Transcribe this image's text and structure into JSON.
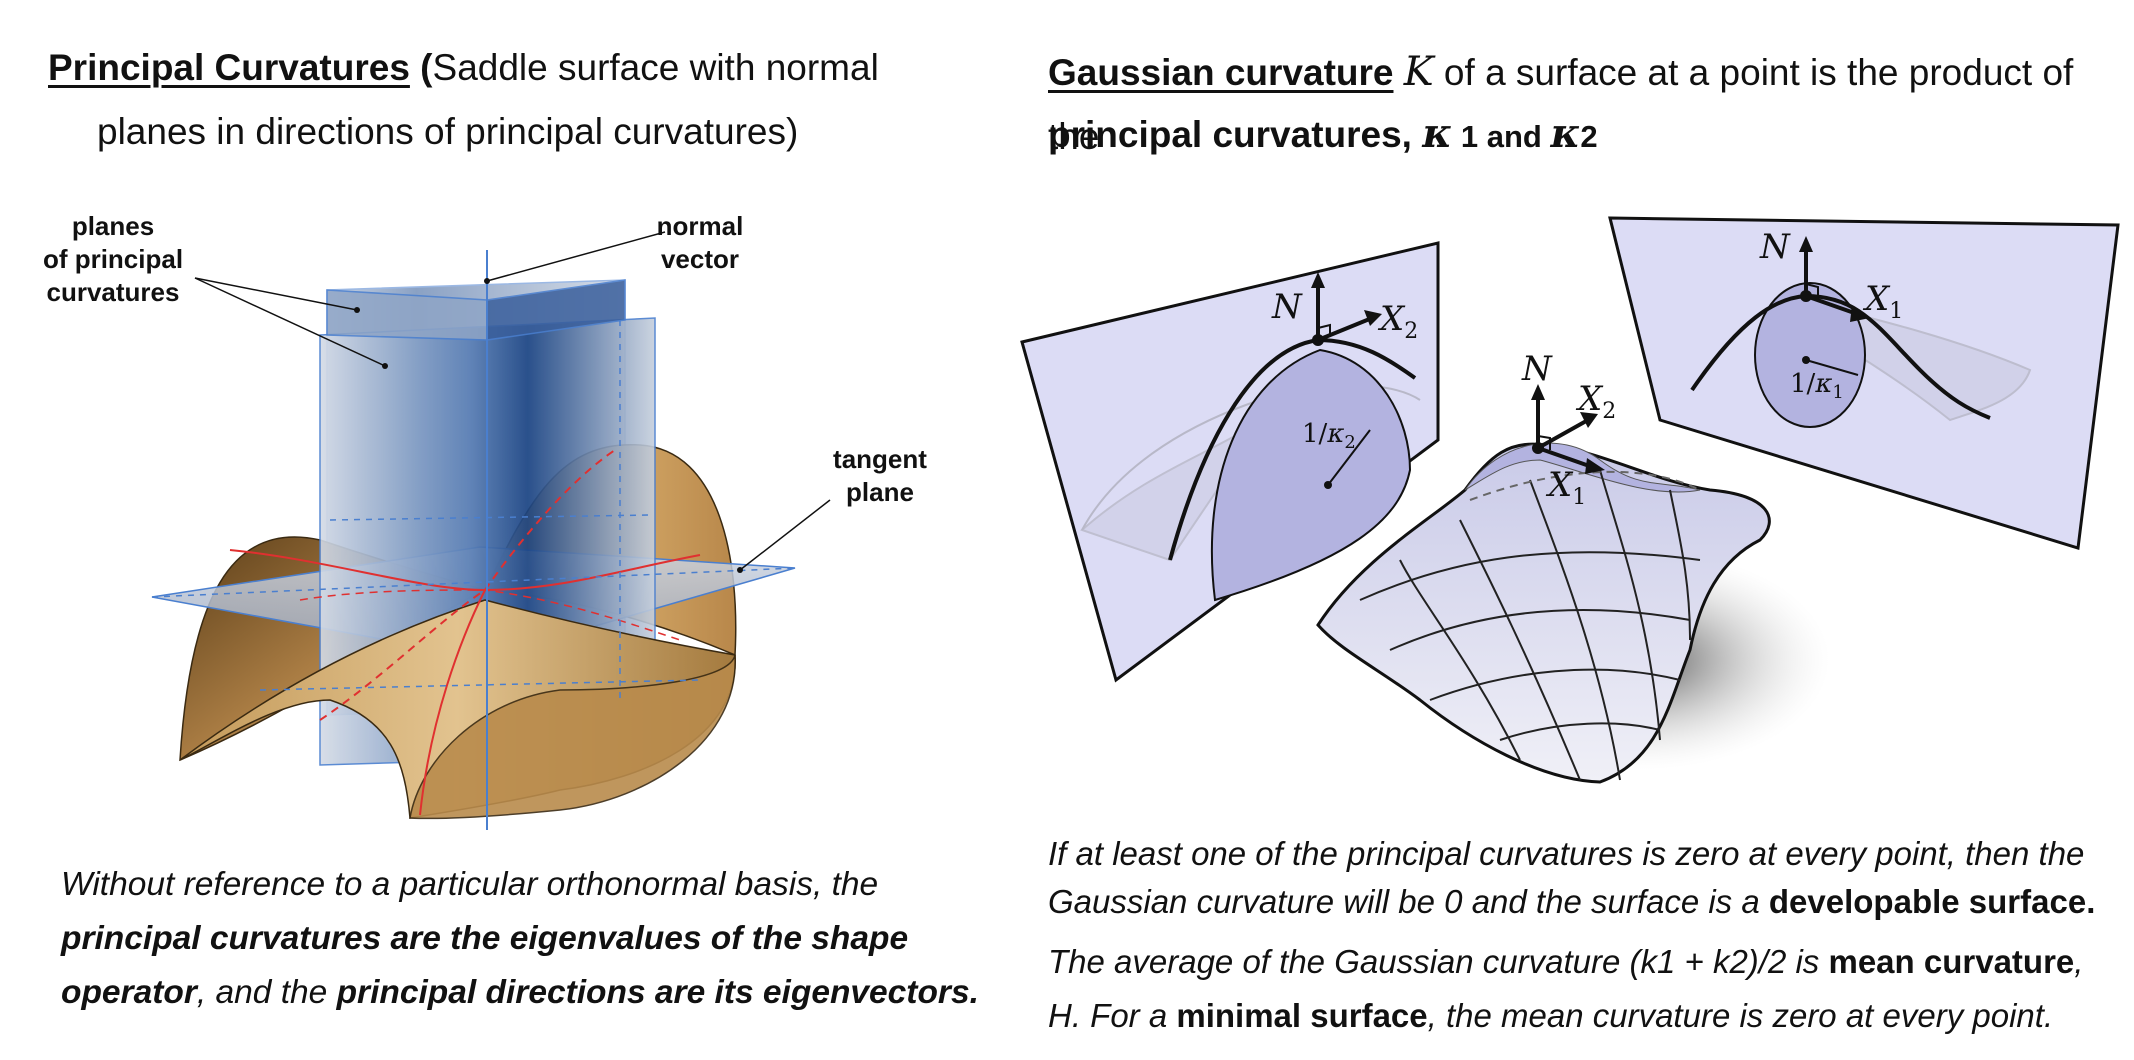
{
  "left": {
    "title": {
      "head": "Principal Curvatures",
      "open": " (",
      "rest_line1": "Saddle surface with normal",
      "line2": "planes in directions of principal curvatures)"
    },
    "labels": {
      "planes": [
        "planes",
        "of principal",
        "curvatures"
      ],
      "normal": [
        "normal",
        "vector"
      ],
      "tangent": [
        "tangent",
        "plane"
      ]
    },
    "caption": {
      "t1": "Without reference to a particular orthonormal basis, the",
      "t2": "principal curvatures are the eigenvalues of the shape",
      "t3": "operator",
      "t4": ", and the ",
      "t5": "principal directions are its eigenvectors."
    }
  },
  "right": {
    "title": {
      "head": "Gaussian curvature",
      "K": "K",
      "rest": " of a surface at a point is the product of the",
      "line2_a": "principal curvatures, ",
      "k1sym": "κ",
      "k1num": " 1 and  ",
      "k2sym": "κ",
      "k2num": "2"
    },
    "diagram": {
      "N": "N",
      "X": "X",
      "sub1": "1",
      "sub2": "2",
      "inv_k1_a": "1/",
      "inv_k1_k": "κ",
      "inv_k1_s": "1",
      "inv_k2_a": "1/",
      "inv_k2_k": "κ",
      "inv_k2_s": "2"
    },
    "caption": {
      "p1a": "If at least one of the principal curvatures is zero at every point, then the",
      "p1b": "Gaussian curvature will be 0 and the surface is a ",
      "p1c": "developable surface.",
      "p2a": "The average of the Gaussian curvature (k1 + k2)/2 is ",
      "p2b": "mean curvature",
      "p2c": ",",
      "p2d": "H. For a ",
      "p2e": "minimal surface",
      "p2f": ", the mean curvature is zero at every point."
    }
  },
  "colors": {
    "plane_blue": "#1e4a8c",
    "saddle_tan": "#c49a5a",
    "lavender": "#dcdcf5",
    "red_curve": "#e03030"
  }
}
